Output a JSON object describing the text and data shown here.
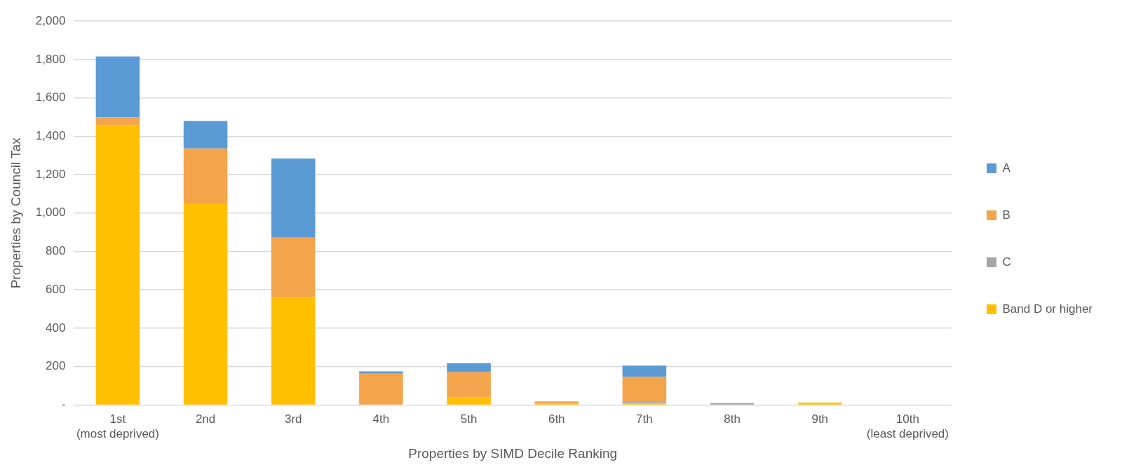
{
  "chart_data": {
    "type": "bar",
    "stacked": true,
    "xlabel": "Properties by SIMD Decile Ranking",
    "ylabel": "Properties by Council Tax",
    "categories": [
      "1st (most deprived)",
      "2nd",
      "3rd",
      "4th",
      "5th",
      "6th",
      "7th",
      "8th",
      "9th",
      "10th (least deprived)"
    ],
    "series": [
      {
        "name": "Band D or higher",
        "color": "#ffc000",
        "values": [
          1459,
          1050,
          560,
          null,
          41,
          10,
          8,
          0,
          12,
          null
        ]
      },
      {
        "name": "C",
        "color": "#a5a5a5",
        "values": [
          null,
          null,
          0,
          0,
          0,
          0,
          7,
          10,
          0,
          0
        ]
      },
      {
        "name": "B",
        "color": "#f4a44a",
        "values": [
          40,
          286,
          312,
          163,
          130,
          9,
          132,
          0,
          0,
          0
        ]
      },
      {
        "name": "A",
        "color": "#5b9bd5",
        "values": [
          317,
          144,
          412,
          12,
          46,
          0,
          58,
          0,
          0,
          0
        ]
      }
    ],
    "ylim": [
      0,
      2000
    ],
    "yticks": [
      {
        "value": 0,
        "label": "-"
      },
      200,
      400,
      600,
      800,
      "1,000",
      "1,200",
      "1,400",
      "1,600",
      "1,800",
      "2,000"
    ],
    "grid": "y",
    "legend": "right"
  }
}
